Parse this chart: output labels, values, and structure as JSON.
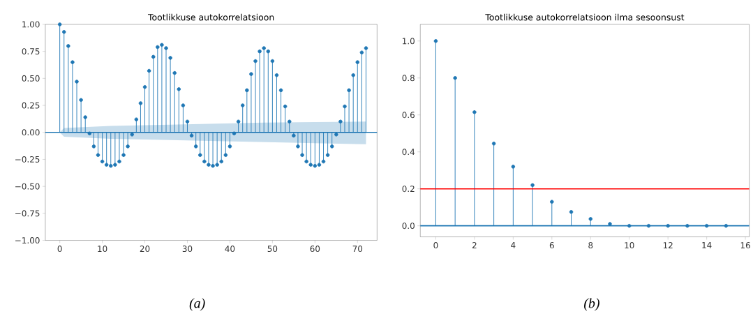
{
  "chart_data": [
    {
      "type": "lollipop",
      "title": "Tootlikkuse autokorrelatsioon",
      "annotations": [
        "(a)"
      ],
      "marker": "circle",
      "xlim": [
        -3.4,
        74.6
      ],
      "xticks": [
        0,
        10,
        20,
        30,
        40,
        50,
        60,
        70
      ],
      "ref_lines": [
        {
          "axis": "y",
          "value": 0,
          "color": "#1f77b4"
        }
      ],
      "ylim": [
        -1,
        1
      ],
      "yticks": [
        {
          "value": -1,
          "label": "−1.00"
        },
        {
          "value": -0.75,
          "label": "−0.75"
        },
        {
          "value": -0.5,
          "label": "−0.50"
        },
        {
          "value": -0.25,
          "label": "−0.25"
        },
        {
          "value": 0,
          "label": "0.00"
        },
        {
          "value": 0.25,
          "label": "0.25"
        },
        {
          "value": 0.5,
          "label": "0.50"
        },
        {
          "value": 0.75,
          "label": "0.75"
        },
        {
          "value": 1,
          "label": "1.00"
        }
      ],
      "series": [
        {
          "type": "line",
          "marker": "none",
          "color": "#1f77b4",
          "x": [
            0,
            1,
            12,
            24,
            36,
            48,
            60,
            72
          ],
          "values": [
            0,
            0,
            0,
            0,
            0,
            0,
            0,
            0
          ],
          "lower": [
            0,
            -0.04,
            -0.06,
            -0.07,
            -0.08,
            -0.09,
            -0.1,
            -0.11
          ],
          "upper": [
            0,
            0.04,
            0.06,
            0.07,
            0.08,
            0.09,
            0.095,
            0.1
          ]
        },
        {
          "color": "#1f77b4",
          "x": [
            0,
            1,
            2,
            3,
            4,
            5,
            6,
            7,
            8,
            9,
            10,
            11,
            12,
            13,
            14,
            15,
            16,
            17,
            18,
            19,
            20,
            21,
            22,
            23,
            24,
            25,
            26,
            27,
            28,
            29,
            30,
            31,
            32,
            33,
            34,
            35,
            36,
            37,
            38,
            39,
            40,
            41,
            42,
            43,
            44,
            45,
            46,
            47,
            48,
            49,
            50,
            51,
            52,
            53,
            54,
            55,
            56,
            57,
            58,
            59,
            60,
            61,
            62,
            63,
            64,
            65,
            66,
            67,
            68,
            69,
            70,
            71,
            72
          ],
          "values": [
            1.0,
            0.93,
            0.8,
            0.65,
            0.47,
            0.3,
            0.14,
            -0.01,
            -0.13,
            -0.21,
            -0.27,
            -0.3,
            -0.31,
            -0.3,
            -0.27,
            -0.21,
            -0.13,
            -0.02,
            0.12,
            0.27,
            0.42,
            0.57,
            0.7,
            0.79,
            0.81,
            0.78,
            0.69,
            0.55,
            0.4,
            0.25,
            0.1,
            -0.03,
            -0.13,
            -0.21,
            -0.27,
            -0.3,
            -0.31,
            -0.3,
            -0.27,
            -0.21,
            -0.13,
            -0.01,
            0.1,
            0.25,
            0.39,
            0.54,
            0.66,
            0.75,
            0.78,
            0.75,
            0.66,
            0.53,
            0.39,
            0.24,
            0.1,
            -0.03,
            -0.13,
            -0.21,
            -0.27,
            -0.3,
            -0.31,
            -0.3,
            -0.27,
            -0.21,
            -0.13,
            -0.02,
            0.1,
            0.24,
            0.39,
            0.53,
            0.65,
            0.74,
            0.78
          ]
        }
      ]
    },
    {
      "type": "lollipop",
      "title": "Tootlikkuse autokorrelatsioon ilma sesoonsust",
      "annotations": [
        "(b)"
      ],
      "marker": "circle",
      "xlim": [
        -0.8,
        16.2
      ],
      "xticks": [
        0,
        2,
        4,
        6,
        8,
        10,
        12,
        14,
        16
      ],
      "ylim": [
        -0.06,
        1.09
      ],
      "yticks": [
        {
          "value": 0,
          "label": "0.0"
        },
        {
          "value": 0.2,
          "label": "0.2"
        },
        {
          "value": 0.4,
          "label": "0.4"
        },
        {
          "value": 0.6,
          "label": "0.6"
        },
        {
          "value": 0.8,
          "label": "0.8"
        },
        {
          "value": 1,
          "label": "1.0"
        }
      ],
      "ref_lines": [
        {
          "axis": "y",
          "value": 0.2,
          "color": "#ff0000"
        },
        {
          "axis": "y",
          "value": 0,
          "color": "#1f77b4"
        }
      ],
      "series": [
        {
          "color": "#1f77b4",
          "x": [
            0,
            1,
            2,
            3,
            4,
            5,
            6,
            7,
            8,
            9,
            10,
            11,
            12,
            13,
            14,
            15
          ],
          "values": [
            1.0,
            0.8,
            0.615,
            0.445,
            0.32,
            0.22,
            0.13,
            0.075,
            0.037,
            0.01,
            0,
            0,
            0,
            0,
            0,
            0
          ]
        }
      ]
    }
  ]
}
